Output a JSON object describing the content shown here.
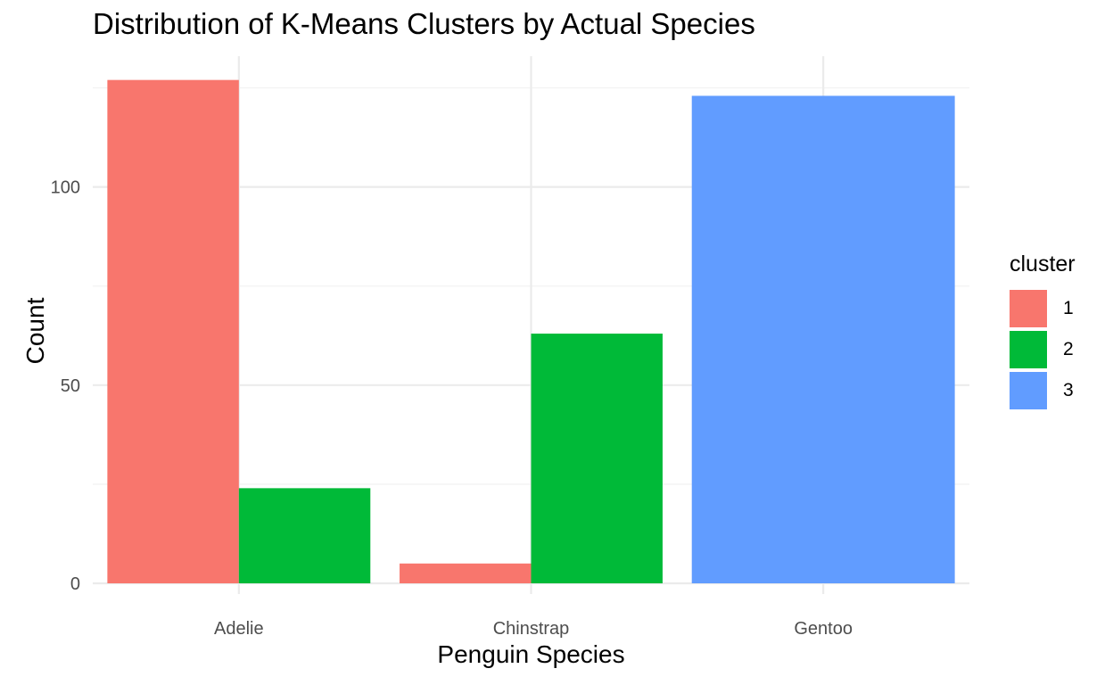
{
  "chart_data": {
    "type": "bar",
    "title": "Distribution of K-Means Clusters by Actual Species",
    "xlabel": "Penguin Species",
    "ylabel": "Count",
    "categories": [
      "Adelie",
      "Chinstrap",
      "Gentoo"
    ],
    "ylim": [
      0,
      127
    ],
    "yticks": [
      0,
      50,
      100
    ],
    "grid": true,
    "legend_position": "right",
    "legend_title": "cluster",
    "series": [
      {
        "name": "1",
        "color": "#F8766D",
        "values": [
          127,
          5,
          0
        ]
      },
      {
        "name": "2",
        "color": "#00BA38",
        "values": [
          24,
          63,
          0
        ]
      },
      {
        "name": "3",
        "color": "#619CFF",
        "values": [
          0,
          0,
          123
        ]
      }
    ]
  }
}
